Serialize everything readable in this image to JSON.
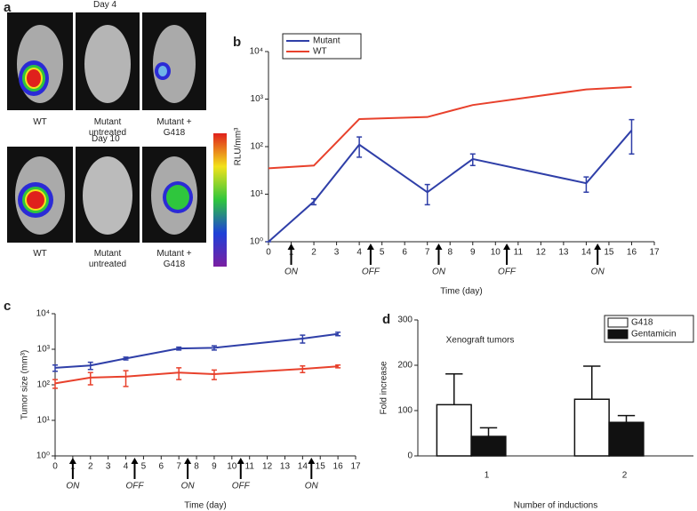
{
  "panel_a": {
    "label": "a",
    "rows": [
      {
        "day": "Day 4",
        "captions": [
          "WT",
          "Mutant untreated",
          "Mutant + G418"
        ]
      },
      {
        "day": "Day 10",
        "captions": [
          "WT",
          "Mutant untreated",
          "Mutant + G418"
        ]
      }
    ]
  },
  "chart_data": [
    {
      "type": "line",
      "label": "b",
      "log_y": true,
      "x_label": "Time (day)",
      "y_label": "RLU/mm³",
      "legend": "top-left",
      "x": [
        0,
        2,
        4,
        7,
        9,
        14,
        16
      ],
      "series": [
        {
          "name": "Mutant",
          "color": "#2f3fa8",
          "values": [
            1,
            7,
            110,
            11,
            55,
            17,
            220
          ],
          "errors": [
            0,
            1,
            50,
            5,
            15,
            6,
            150
          ]
        },
        {
          "name": "WT",
          "color": "#e8412c",
          "values": [
            35,
            40,
            380,
            420,
            750,
            1600,
            1800
          ]
        }
      ],
      "xlim": [
        0,
        17
      ],
      "xticks": [
        0,
        1,
        2,
        3,
        4,
        5,
        6,
        7,
        8,
        9,
        10,
        11,
        12,
        13,
        14,
        15,
        16,
        17
      ],
      "ylim": [
        1,
        10000
      ],
      "yticks": [
        {
          "value": 1,
          "label": "10⁰"
        },
        {
          "value": 10,
          "label": "10¹"
        },
        {
          "value": 100,
          "label": "10²"
        },
        {
          "value": 1000,
          "label": "10³"
        },
        {
          "value": 10000,
          "label": "10⁴"
        }
      ],
      "annotations": [
        {
          "x": 1,
          "label": "ON"
        },
        {
          "x": 4.5,
          "label": "OFF"
        },
        {
          "x": 7.5,
          "label": "ON"
        },
        {
          "x": 10.5,
          "label": "OFF"
        },
        {
          "x": 14.5,
          "label": "ON"
        }
      ]
    },
    {
      "type": "line",
      "label": "c",
      "log_y": true,
      "x_label": "Time (day)",
      "y_label": "Tumor size (mm³)",
      "x": [
        0,
        2,
        4,
        7,
        9,
        14,
        16
      ],
      "series": [
        {
          "color": "#2f3fa8",
          "values": [
            300,
            350,
            550,
            1050,
            1100,
            2000,
            2700
          ],
          "errors": [
            60,
            80,
            50,
            100,
            150,
            500,
            300
          ]
        },
        {
          "color": "#e8412c",
          "values": [
            110,
            160,
            170,
            220,
            200,
            280,
            330
          ],
          "errors": [
            30,
            60,
            80,
            80,
            60,
            60,
            30
          ]
        }
      ],
      "xlim": [
        0,
        17
      ],
      "xticks": [
        0,
        1,
        2,
        3,
        4,
        5,
        6,
        7,
        8,
        9,
        10,
        11,
        12,
        13,
        14,
        15,
        16,
        17
      ],
      "ylim": [
        1,
        10000
      ],
      "yticks": [
        {
          "value": 1,
          "label": "10⁰"
        },
        {
          "value": 10,
          "label": "10¹"
        },
        {
          "value": 100,
          "label": "10²"
        },
        {
          "value": 1000,
          "label": "10³"
        },
        {
          "value": 10000,
          "label": "10⁴"
        }
      ],
      "annotations": [
        {
          "x": 1,
          "label": "ON"
        },
        {
          "x": 4.5,
          "label": "OFF"
        },
        {
          "x": 7.5,
          "label": "ON"
        },
        {
          "x": 10.5,
          "label": "OFF"
        },
        {
          "x": 14.5,
          "label": "ON"
        }
      ]
    },
    {
      "type": "bar",
      "label": "d",
      "title": "Xenograft tumors",
      "x_label": "Number of inductions",
      "y_label": "Fold increase",
      "legend": "top-right",
      "categories": [
        "1",
        "2"
      ],
      "series": [
        {
          "name": "G418",
          "color": "#ffffff",
          "values": [
            113,
            125
          ],
          "errors": [
            68,
            73
          ]
        },
        {
          "name": "Gentamicin",
          "color": "#111111",
          "values": [
            43,
            74
          ],
          "errors": [
            19,
            15
          ]
        }
      ],
      "ylim": [
        0,
        300
      ],
      "yticks": [
        0,
        100,
        200,
        300
      ]
    }
  ]
}
